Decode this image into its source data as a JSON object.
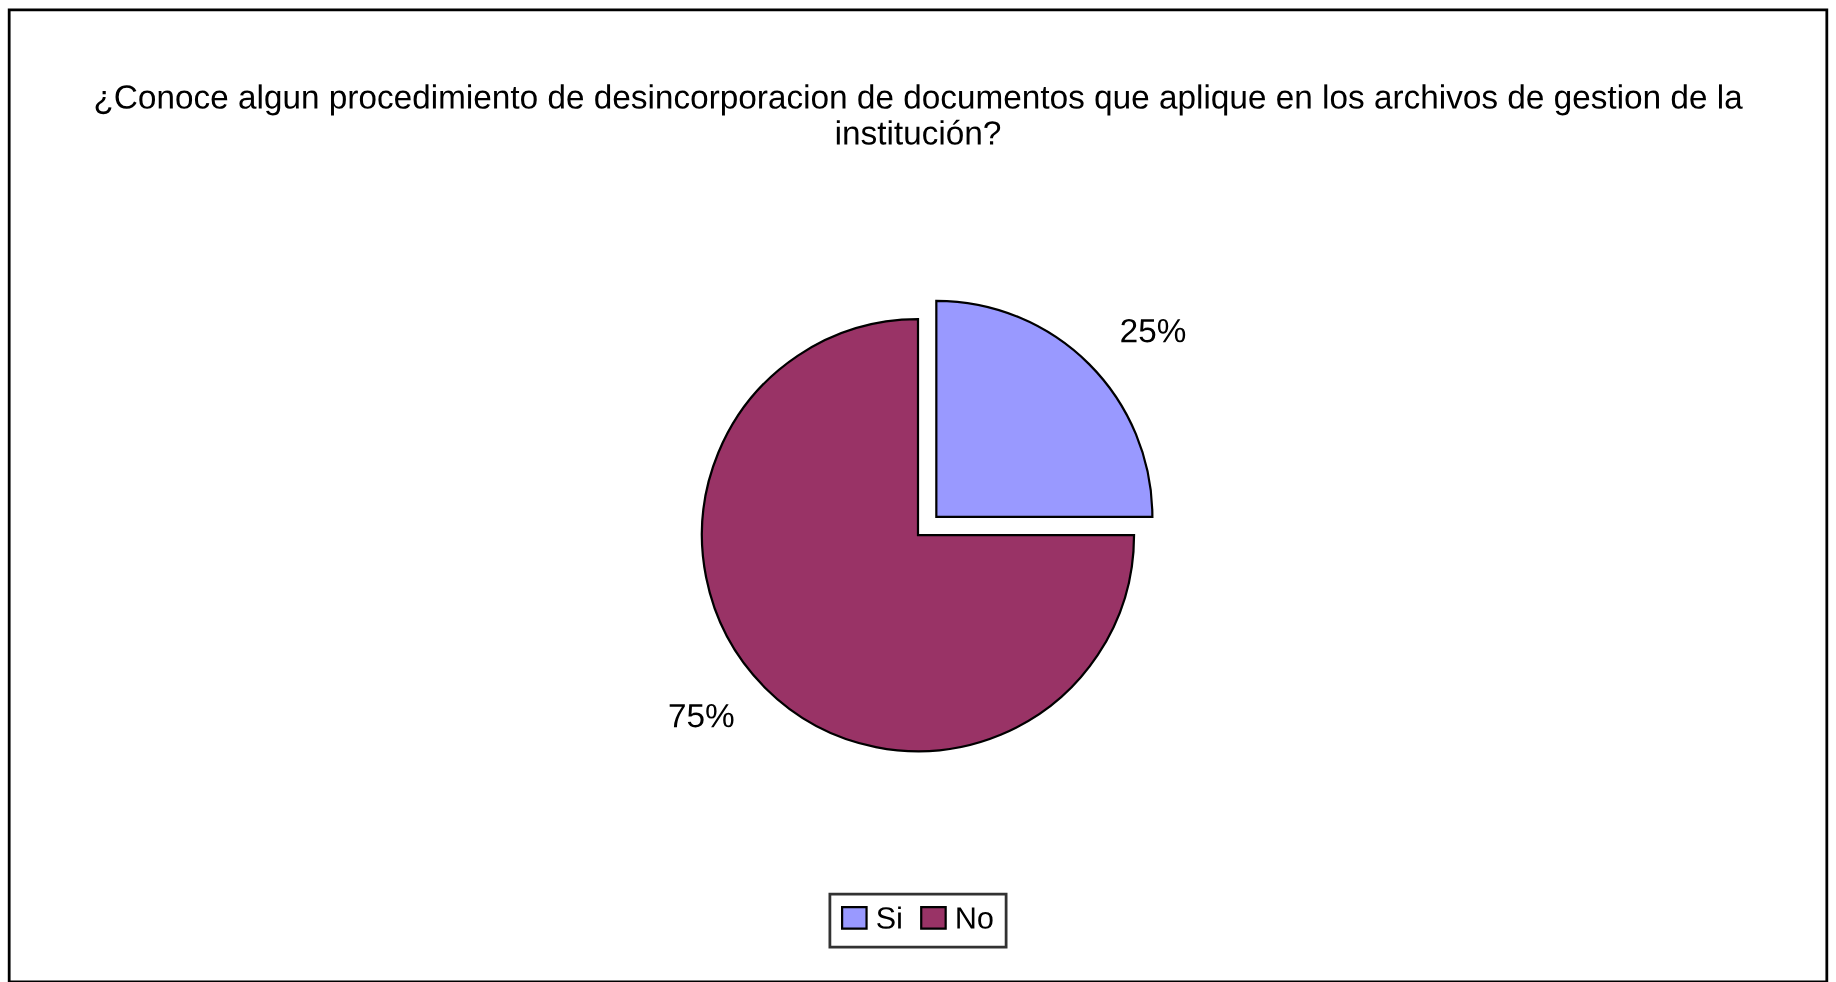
{
  "chart_data": {
    "type": "pie",
    "title": "¿Conoce algun procedimiento de desincorporacion de documentos que aplique en los archivos de gestion de la institución?",
    "categories": [
      "Si",
      "No"
    ],
    "values": [
      25,
      75
    ],
    "colors": [
      "#9999ff",
      "#993366"
    ],
    "value_labels": [
      "25%",
      "75%"
    ],
    "legend": "bottom"
  }
}
